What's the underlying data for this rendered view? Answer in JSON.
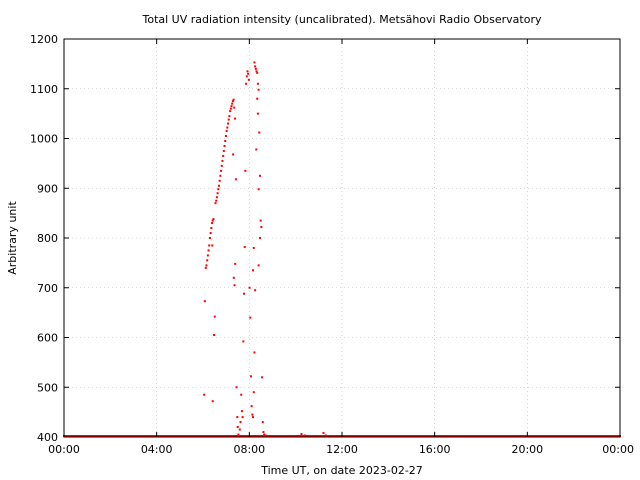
{
  "chart_data": {
    "type": "scatter",
    "title": "Total UV radiation intensity (uncalibrated). Metsähovi Radio Observatory",
    "xlabel": "Time UT, on date 2023-02-27",
    "ylabel": "Arbitrary unit",
    "x_unit": "hours UT",
    "xlim": [
      0,
      24
    ],
    "ylim": [
      400,
      1200
    ],
    "x_tick_values": [
      0,
      4,
      8,
      12,
      16,
      20,
      24
    ],
    "x_tick_labels": [
      "00:00",
      "04:00",
      "08:00",
      "12:00",
      "16:00",
      "20:00",
      "00:00"
    ],
    "y_ticks": [
      400,
      500,
      600,
      700,
      800,
      900,
      1000,
      1100,
      1200
    ],
    "grid": true,
    "marker_color": "#ff0000",
    "baseline": {
      "value": 400,
      "x_from": 0,
      "x_to": 24
    },
    "points": [
      [
        6.05,
        485
      ],
      [
        6.08,
        673
      ],
      [
        6.12,
        740
      ],
      [
        6.15,
        745
      ],
      [
        6.18,
        755
      ],
      [
        6.21,
        765
      ],
      [
        6.24,
        775
      ],
      [
        6.27,
        785
      ],
      [
        6.3,
        800
      ],
      [
        6.33,
        810
      ],
      [
        6.36,
        820
      ],
      [
        6.39,
        830
      ],
      [
        6.42,
        835
      ],
      [
        6.45,
        838
      ],
      [
        6.4,
        785
      ],
      [
        6.42,
        472
      ],
      [
        6.48,
        605
      ],
      [
        6.51,
        642
      ],
      [
        6.54,
        870
      ],
      [
        6.57,
        875
      ],
      [
        6.6,
        882
      ],
      [
        6.63,
        890
      ],
      [
        6.66,
        898
      ],
      [
        6.69,
        905
      ],
      [
        6.72,
        915
      ],
      [
        6.75,
        925
      ],
      [
        6.78,
        935
      ],
      [
        6.81,
        945
      ],
      [
        6.84,
        955
      ],
      [
        6.87,
        965
      ],
      [
        6.9,
        975
      ],
      [
        6.93,
        985
      ],
      [
        6.96,
        995
      ],
      [
        6.99,
        1005
      ],
      [
        7.02,
        1015
      ],
      [
        7.05,
        1022
      ],
      [
        7.08,
        1030
      ],
      [
        7.11,
        1038
      ],
      [
        7.14,
        1045
      ],
      [
        7.17,
        1055
      ],
      [
        7.2,
        1060
      ],
      [
        7.23,
        1065
      ],
      [
        7.26,
        1070
      ],
      [
        7.29,
        1075
      ],
      [
        7.32,
        1078
      ],
      [
        7.35,
        1062
      ],
      [
        7.38,
        1040
      ],
      [
        7.3,
        968
      ],
      [
        7.33,
        720
      ],
      [
        7.36,
        705
      ],
      [
        7.39,
        748
      ],
      [
        7.42,
        918
      ],
      [
        7.45,
        500
      ],
      [
        7.48,
        440
      ],
      [
        7.5,
        420
      ],
      [
        7.53,
        405
      ],
      [
        7.56,
        402
      ],
      [
        7.59,
        415
      ],
      [
        7.62,
        430
      ],
      [
        7.65,
        485
      ],
      [
        7.68,
        452
      ],
      [
        7.71,
        440
      ],
      [
        7.74,
        592
      ],
      [
        7.77,
        688
      ],
      [
        7.8,
        782
      ],
      [
        7.83,
        935
      ],
      [
        7.86,
        1110
      ],
      [
        7.89,
        1125
      ],
      [
        7.92,
        1135
      ],
      [
        7.95,
        1130
      ],
      [
        7.98,
        1118
      ],
      [
        8.01,
        700
      ],
      [
        8.04,
        640
      ],
      [
        8.07,
        522
      ],
      [
        8.1,
        462
      ],
      [
        8.13,
        445
      ],
      [
        8.16,
        440
      ],
      [
        8.19,
        490
      ],
      [
        8.22,
        570
      ],
      [
        8.25,
        695
      ],
      [
        8.16,
        735
      ],
      [
        8.19,
        780
      ],
      [
        8.22,
        1153
      ],
      [
        8.25,
        1145
      ],
      [
        8.28,
        1140
      ],
      [
        8.31,
        1135
      ],
      [
        8.34,
        1132
      ],
      [
        8.37,
        1110
      ],
      [
        8.4,
        1098
      ],
      [
        8.34,
        1080
      ],
      [
        8.37,
        1050
      ],
      [
        8.3,
        978
      ],
      [
        8.43,
        1012
      ],
      [
        8.46,
        925
      ],
      [
        8.4,
        898
      ],
      [
        8.49,
        835
      ],
      [
        8.52,
        822
      ],
      [
        8.46,
        800
      ],
      [
        8.4,
        745
      ],
      [
        8.55,
        520
      ],
      [
        8.58,
        430
      ],
      [
        8.61,
        410
      ],
      [
        8.64,
        405
      ],
      [
        8.7,
        403
      ],
      [
        8.8,
        402
      ],
      [
        8.9,
        402
      ],
      [
        10.25,
        406
      ],
      [
        10.4,
        403
      ],
      [
        11.05,
        402
      ],
      [
        11.2,
        408
      ],
      [
        11.3,
        403
      ]
    ]
  }
}
